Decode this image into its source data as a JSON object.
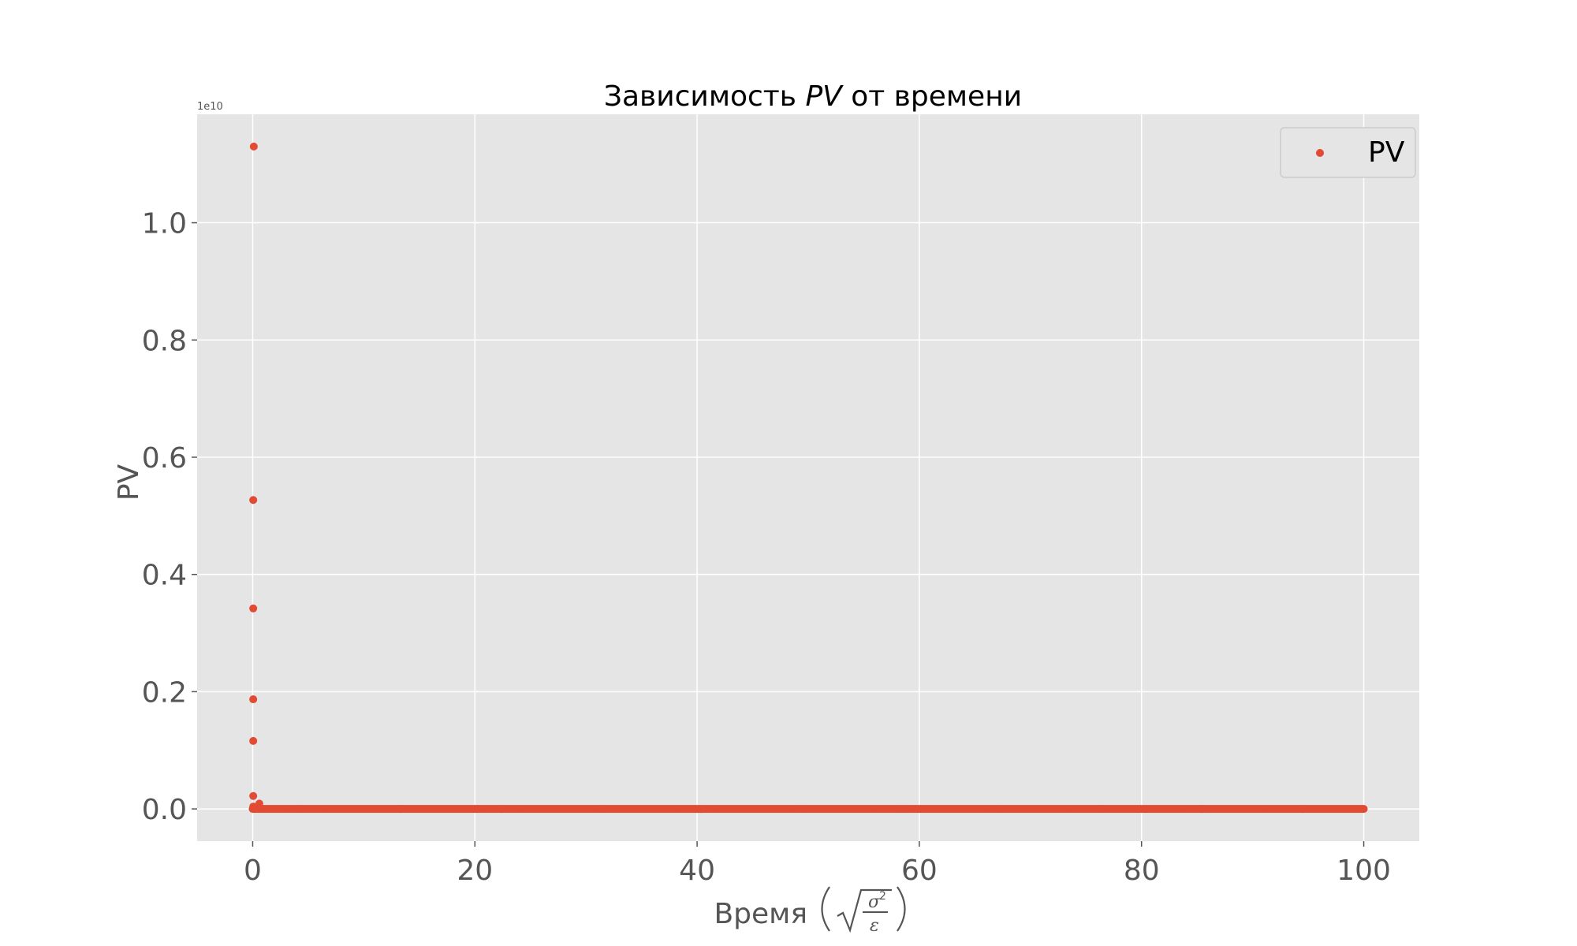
{
  "chart_data": {
    "type": "scatter",
    "title_prefix": "Зависимость ",
    "title_italic": "PV",
    "title_suffix": " от времени",
    "xlabel": "Время",
    "xlabel_unit_symbols": {
      "numerator": "σ",
      "exponent": "2",
      "denominator": "ε"
    },
    "ylabel": "PV",
    "y_offset_label": "1e10",
    "xlim": [
      -5,
      105
    ],
    "ylim": [
      -0.055,
      1.185
    ],
    "x_ticks": [
      0,
      20,
      40,
      60,
      80,
      100
    ],
    "x_tick_labels": [
      "0",
      "20",
      "40",
      "60",
      "80",
      "100"
    ],
    "y_ticks": [
      0.0,
      0.2,
      0.4,
      0.6,
      0.8,
      1.0
    ],
    "y_tick_labels": [
      "0.0",
      "0.2",
      "0.4",
      "0.6",
      "0.8",
      "1.0"
    ],
    "grid": true,
    "legend_position": "top-right",
    "series": [
      {
        "name": "PV",
        "color": "#E24A33",
        "points": [
          [
            0.1,
            1.13
          ],
          [
            0.05,
            0.527
          ],
          [
            0.05,
            0.342
          ],
          [
            0.05,
            0.187
          ],
          [
            0.05,
            0.116
          ],
          [
            0.05,
            0.022
          ],
          [
            0.05,
            0.004
          ],
          [
            0.6,
            0.009
          ],
          [
            0.25,
            0.002
          ],
          [
            0.4,
            0.0015
          ]
        ],
        "baseline": {
          "x_start": 0.0,
          "x_end": 100.0,
          "step": 0.1,
          "y": 0.0
        }
      }
    ],
    "axes_background": "#E5E5E5",
    "grid_color": "#FFFFFF"
  }
}
